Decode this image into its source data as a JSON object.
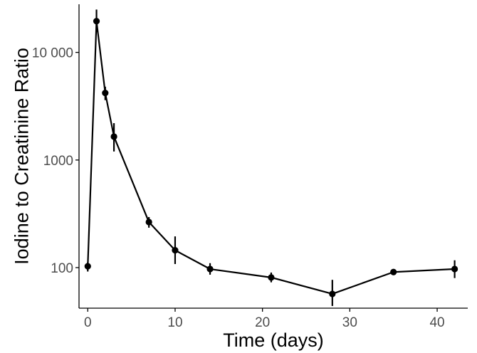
{
  "chart_data": {
    "type": "line",
    "title": "",
    "xlabel": "Time (days)",
    "ylabel": "Iodine to Creatinine Ratio",
    "xlim": [
      -1,
      43.5
    ],
    "ylim": [
      42,
      28000
    ],
    "y_scale": "log",
    "x_ticks": [
      0,
      10,
      20,
      30,
      40
    ],
    "x_tick_labels": [
      "0",
      "10",
      "20",
      "30",
      "40"
    ],
    "y_ticks": [
      100,
      1000,
      10000
    ],
    "y_tick_labels": [
      "100",
      "1000",
      "10 000"
    ],
    "grid": false,
    "legend": "none",
    "colors": {
      "series": "#000000",
      "axis": "#000000",
      "tick_text": "#4d4d4d"
    },
    "series": [
      {
        "points": [
          {
            "x": 0,
            "y": 103,
            "lo": 92,
            "hi": 112
          },
          {
            "x": 1,
            "y": 19500,
            "lo": 15500,
            "hi": 25000
          },
          {
            "x": 2,
            "y": 4200,
            "lo": 3600,
            "hi": 4800
          },
          {
            "x": 3,
            "y": 1650,
            "lo": 1200,
            "hi": 2200
          },
          {
            "x": 7,
            "y": 265,
            "lo": 235,
            "hi": 295
          },
          {
            "x": 10,
            "y": 145,
            "lo": 108,
            "hi": 195
          },
          {
            "x": 14,
            "y": 97,
            "lo": 86,
            "hi": 110
          },
          {
            "x": 21,
            "y": 81,
            "lo": 73,
            "hi": 90
          },
          {
            "x": 28,
            "y": 57,
            "lo": 44,
            "hi": 77
          },
          {
            "x": 35,
            "y": 91,
            "lo": 86,
            "hi": 96
          },
          {
            "x": 42,
            "y": 97,
            "lo": 80,
            "hi": 117
          }
        ]
      }
    ]
  }
}
